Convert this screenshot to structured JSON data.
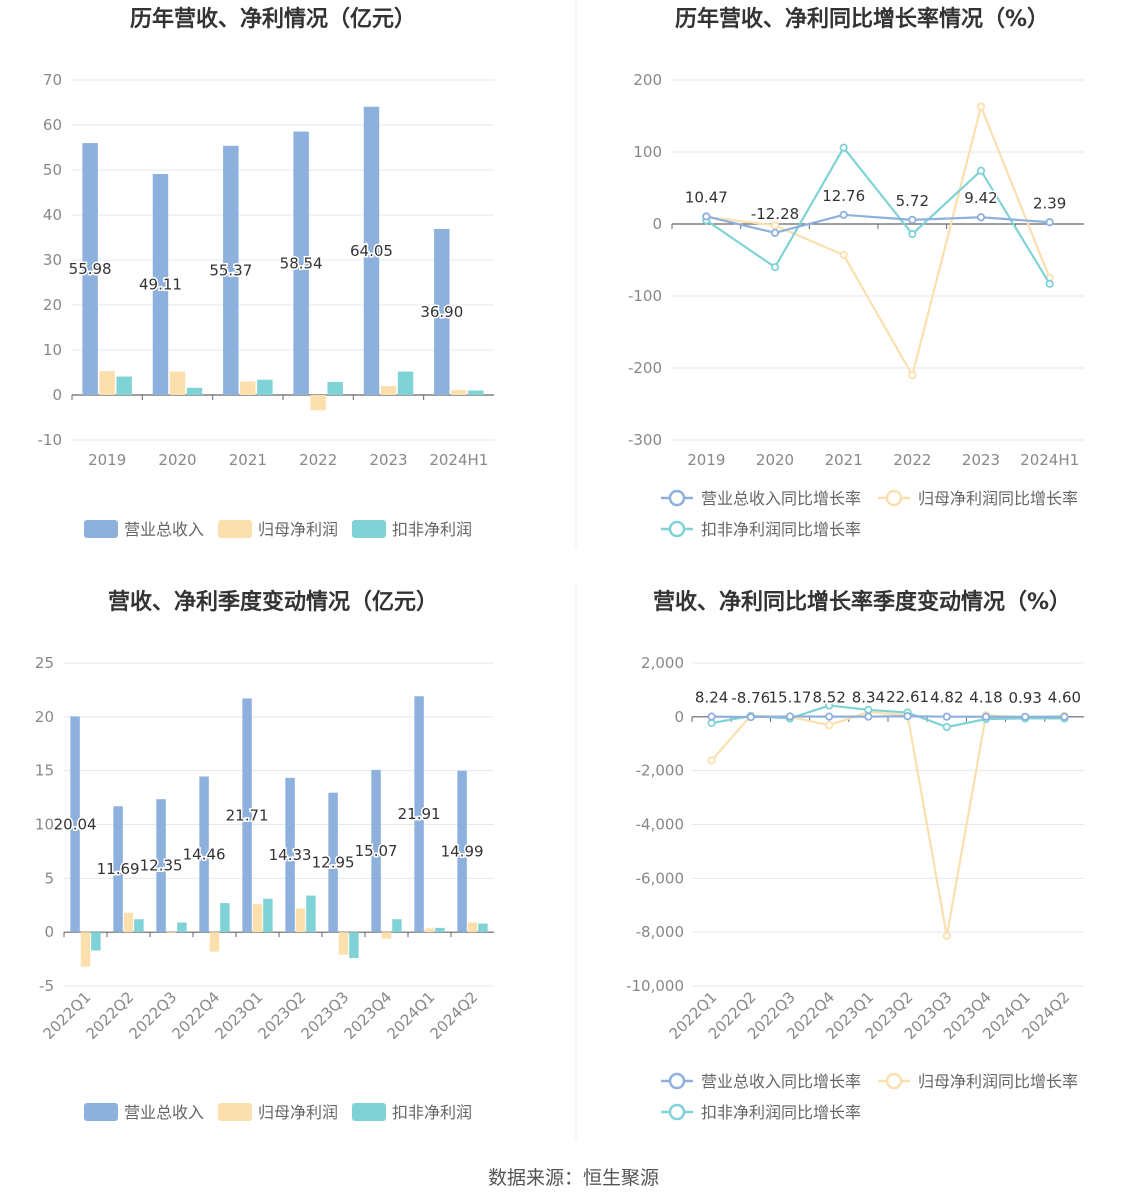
{
  "colors": {
    "revenue": "#8eb0dc",
    "parent_profit": "#fbe0ae",
    "deducted_profit": "#7fd3d6",
    "title": "#333333",
    "axis_label": "#888888",
    "grid": "#e3e7f0",
    "axis_line": "#666666",
    "value_label": "#333333",
    "legend_text": "#666666"
  },
  "source": "数据来源：恒生聚源",
  "charts": [
    {
      "id": "annual-amount",
      "title": "历年营收、净利情况（亿元）",
      "chart_data": {
        "type": "bar",
        "title": "历年营收、净利情况（亿元）",
        "categories": [
          "2019",
          "2020",
          "2021",
          "2022",
          "2023",
          "2024H1"
        ],
        "ylim": [
          -10,
          70
        ],
        "yticks": [
          "70",
          "60",
          "50",
          "40",
          "30",
          "20",
          "10",
          "0",
          "-10"
        ],
        "grid": true,
        "legend_position": "bottom",
        "series": [
          {
            "name": "营业总收入",
            "color_key": "revenue",
            "values": [
              55.98,
              49.11,
              55.37,
              58.54,
              64.05,
              36.9
            ],
            "labels": [
              "55.98",
              "49.11",
              "55.37",
              "58.54",
              "64.05",
              "36.90"
            ]
          },
          {
            "name": "归母净利润",
            "color_key": "parent_profit",
            "values": [
              5.3,
              5.2,
              3.0,
              -3.4,
              2.0,
              1.1
            ]
          },
          {
            "name": "扣非净利润",
            "color_key": "deducted_profit",
            "values": [
              4.1,
              1.6,
              3.4,
              2.9,
              5.2,
              1.0
            ]
          }
        ]
      }
    },
    {
      "id": "annual-growth",
      "title": "历年营收、净利同比增长率情况（%）",
      "chart_data": {
        "type": "line",
        "title": "历年营收、净利同比增长率情况（%）",
        "categories": [
          "2019",
          "2020",
          "2021",
          "2022",
          "2023",
          "2024H1"
        ],
        "ylim": [
          -300,
          200
        ],
        "yticks": [
          "200",
          "100",
          "0",
          "-100",
          "-200",
          "-300"
        ],
        "grid": true,
        "legend_position": "bottom",
        "series": [
          {
            "name": "营业总收入同比增长率",
            "color_key": "revenue",
            "values": [
              10.47,
              -12.28,
              12.76,
              5.72,
              9.42,
              2.39
            ],
            "labels": [
              "10.47",
              "-12.28",
              "12.76",
              "5.72",
              "9.42",
              "2.39"
            ]
          },
          {
            "name": "归母净利润同比增长率",
            "color_key": "parent_profit",
            "values": [
              10,
              -2,
              -43,
              -210,
              163,
              -75
            ]
          },
          {
            "name": "扣非净利润同比增长率",
            "color_key": "deducted_profit",
            "values": [
              5,
              -60,
              106,
              -14,
              74,
              -83
            ]
          }
        ]
      }
    },
    {
      "id": "quarterly-amount",
      "title": "营收、净利季度变动情况（亿元）",
      "chart_data": {
        "type": "bar",
        "title": "营收、净利季度变动情况（亿元）",
        "categories": [
          "2022Q1",
          "2022Q2",
          "2022Q3",
          "2022Q4",
          "2023Q1",
          "2023Q2",
          "2023Q3",
          "2023Q4",
          "2024Q1",
          "2024Q2"
        ],
        "ylim": [
          -5,
          25
        ],
        "yticks": [
          "25",
          "20",
          "15",
          "10",
          "5",
          "0",
          "-5"
        ],
        "grid": true,
        "legend_position": "bottom",
        "series": [
          {
            "name": "营业总收入",
            "color_key": "revenue",
            "values": [
              20.04,
              11.69,
              12.35,
              14.46,
              21.71,
              14.33,
              12.95,
              15.07,
              21.91,
              14.99
            ],
            "labels": [
              "20.04",
              "11.69",
              "12.35",
              "14.46",
              "21.71",
              "14.33",
              "12.95",
              "15.07",
              "21.91",
              "14.99"
            ]
          },
          {
            "name": "归母净利润",
            "color_key": "parent_profit",
            "values": [
              -3.2,
              1.8,
              0.0,
              -1.8,
              2.6,
              2.2,
              -2.1,
              -0.6,
              0.35,
              0.9
            ]
          },
          {
            "name": "扣非净利润",
            "color_key": "deducted_profit",
            "values": [
              -1.7,
              1.2,
              0.9,
              2.7,
              3.1,
              3.4,
              -2.4,
              1.2,
              0.4,
              0.8
            ]
          }
        ]
      }
    },
    {
      "id": "quarterly-growth",
      "title": "营收、净利同比增长率季度变动情况（%）",
      "chart_data": {
        "type": "line",
        "title": "营收、净利同比增长率季度变动情况（%）",
        "categories": [
          "2022Q1",
          "2022Q2",
          "2022Q3",
          "2022Q4",
          "2023Q1",
          "2023Q2",
          "2023Q3",
          "2023Q4",
          "2024Q1",
          "2024Q2"
        ],
        "ylim": [
          -10000,
          2000
        ],
        "yticks": [
          "2,000",
          "0",
          "-2,000",
          "-4,000",
          "-6,000",
          "-8,000",
          "-10,000"
        ],
        "grid": true,
        "legend_position": "bottom",
        "series": [
          {
            "name": "营业总收入同比增长率",
            "color_key": "revenue",
            "values": [
              8.24,
              -8.76,
              15.17,
              8.52,
              8.34,
              22.61,
              4.82,
              4.18,
              0.93,
              4.6
            ],
            "labels": [
              "8.24",
              "-8.76",
              "15.17",
              "8.52",
              "8.34",
              "22.61",
              "4.82",
              "4.18",
              "0.93",
              "4.60"
            ]
          },
          {
            "name": "归母净利润同比增长率",
            "color_key": "parent_profit",
            "values": [
              -1620,
              40,
              0,
              -310,
              180,
              60,
              -8140,
              60,
              -20,
              30
            ]
          },
          {
            "name": "扣非净利润同比增长率",
            "color_key": "deducted_profit",
            "values": [
              -230,
              30,
              -60,
              420,
              260,
              160,
              -380,
              -80,
              -60,
              -60
            ]
          }
        ]
      }
    }
  ]
}
